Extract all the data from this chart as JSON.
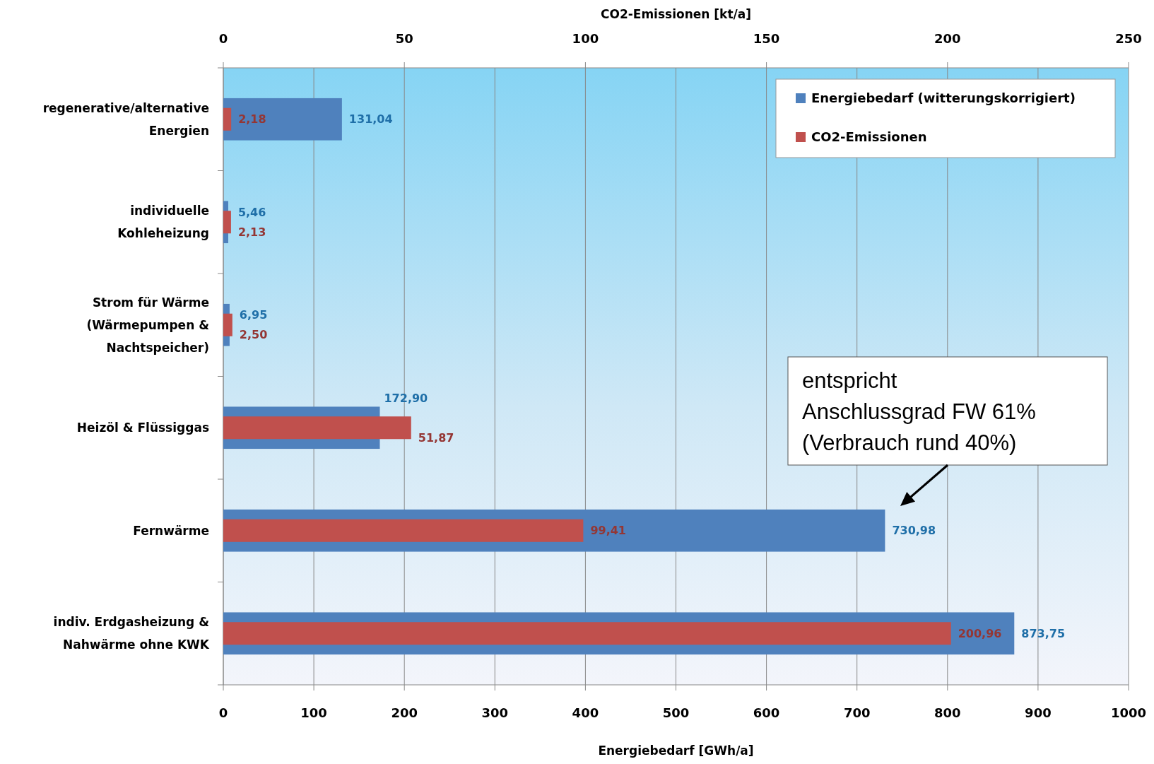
{
  "chart_data": {
    "type": "bar",
    "orientation": "horizontal",
    "categories": [
      "regenerative/alternative\nEnergien",
      "individuelle\nKohleheizung",
      "Strom für Wärme\n(Wärmepumpen &\nNachtspeicher)",
      "Heizöl & Flüssiggas",
      "Fernwärme",
      "indiv. Erdgasheizung &\nNahwärme ohne KWK"
    ],
    "series": [
      {
        "name": "Energiebedarf (witterungskorrigiert)",
        "color": "#4f81bd",
        "values": [
          131.04,
          5.46,
          6.95,
          172.9,
          730.98,
          873.75
        ],
        "value_labels": [
          "131,04",
          "5,46",
          "6,95",
          "172,90",
          "730,98",
          "873,75"
        ]
      },
      {
        "name": "CO2-Emissionen",
        "color": "#c0504d",
        "axis": "x2",
        "values": [
          2.18,
          2.13,
          2.5,
          51.87,
          99.41,
          200.96
        ],
        "value_labels": [
          "2,18",
          "2,13",
          "2,50",
          "51,87",
          "99,41",
          "200,96"
        ]
      }
    ],
    "xlim": [
      0,
      1000
    ],
    "xticks": [
      0,
      100,
      200,
      300,
      400,
      500,
      600,
      700,
      800,
      900,
      1000
    ],
    "x2lim": [
      0,
      250
    ],
    "x2ticks": [
      0,
      50,
      100,
      150,
      200,
      250
    ],
    "xlabel": "Energiebedarf [GWh/a]",
    "x2label": "CO2-Emissionen [kt/a]",
    "grid": "x",
    "legend": "top right",
    "annotations": [
      "entspricht\nAnschlussgrad FW 61%\n(Verbrauch rund 40%)"
    ]
  }
}
